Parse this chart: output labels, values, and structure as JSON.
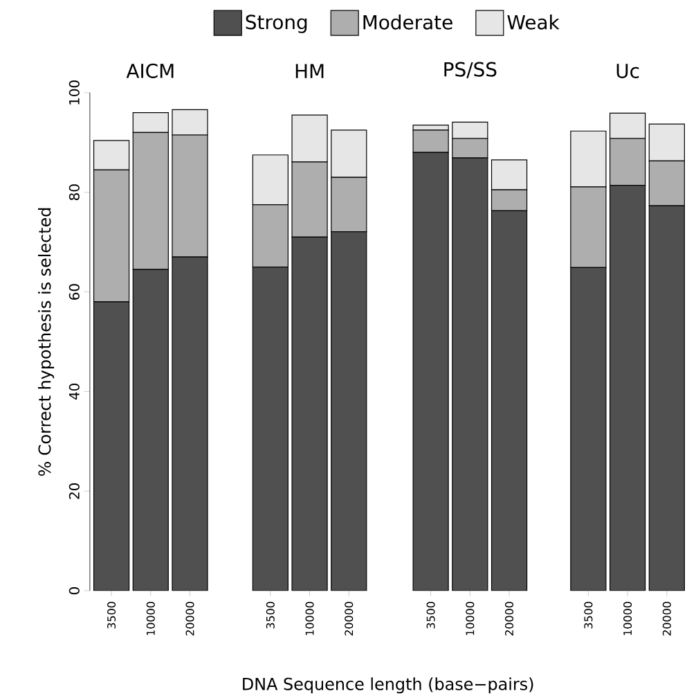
{
  "chart_data": [
    {
      "type": "bar",
      "title": "AICM",
      "xlabel": "DNA Sequence length (base−pairs)",
      "ylabel": "% Correct hypothesis is selected",
      "categories": [
        "3500",
        "10000",
        "20000"
      ],
      "stacked": true,
      "legend": "top",
      "ylim": [
        0,
        100
      ],
      "yticks": [
        0,
        20,
        40,
        60,
        80,
        100
      ],
      "series": [
        {
          "name": "Strong",
          "color": "#505050",
          "values": [
            58.0,
            64.5,
            67.0
          ]
        },
        {
          "name": "Moderate",
          "color": "#aeaeae",
          "values": [
            26.5,
            27.5,
            24.5
          ]
        },
        {
          "name": "Weak",
          "color": "#e6e6e6",
          "values": [
            5.9,
            4.0,
            5.1
          ]
        }
      ]
    },
    {
      "type": "bar",
      "title": "HM",
      "categories": [
        "3500",
        "10000",
        "20000"
      ],
      "stacked": true,
      "ylim": [
        0,
        100
      ],
      "tick_labels": "x",
      "series": [
        {
          "color": "#505050",
          "values": [
            65.0,
            71.0,
            72.1
          ]
        },
        {
          "color": "#aeaeae",
          "values": [
            12.5,
            15.1,
            10.9
          ]
        },
        {
          "color": "#e6e6e6",
          "values": [
            10.0,
            9.4,
            9.5
          ]
        }
      ]
    },
    {
      "type": "bar",
      "title": "PS/SS",
      "categories": [
        "3500",
        "10000",
        "20000"
      ],
      "stacked": true,
      "ylim": [
        0,
        100
      ],
      "tick_labels": "x",
      "series": [
        {
          "color": "#505050",
          "values": [
            88.0,
            86.9,
            76.3
          ]
        },
        {
          "color": "#aeaeae",
          "values": [
            4.5,
            3.9,
            4.2
          ]
        },
        {
          "color": "#e6e6e6",
          "values": [
            1.0,
            3.3,
            6.0
          ]
        }
      ]
    },
    {
      "type": "bar",
      "title": "Uc",
      "categories": [
        "3500",
        "10000",
        "20000"
      ],
      "stacked": true,
      "ylim": [
        0,
        100
      ],
      "tick_labels": "x",
      "series": [
        {
          "color": "#505050",
          "values": [
            64.9,
            81.4,
            77.3
          ]
        },
        {
          "color": "#aeaeae",
          "values": [
            16.2,
            9.4,
            9.0
          ]
        },
        {
          "color": "#e6e6e6",
          "values": [
            11.2,
            5.1,
            7.4
          ]
        }
      ]
    }
  ]
}
